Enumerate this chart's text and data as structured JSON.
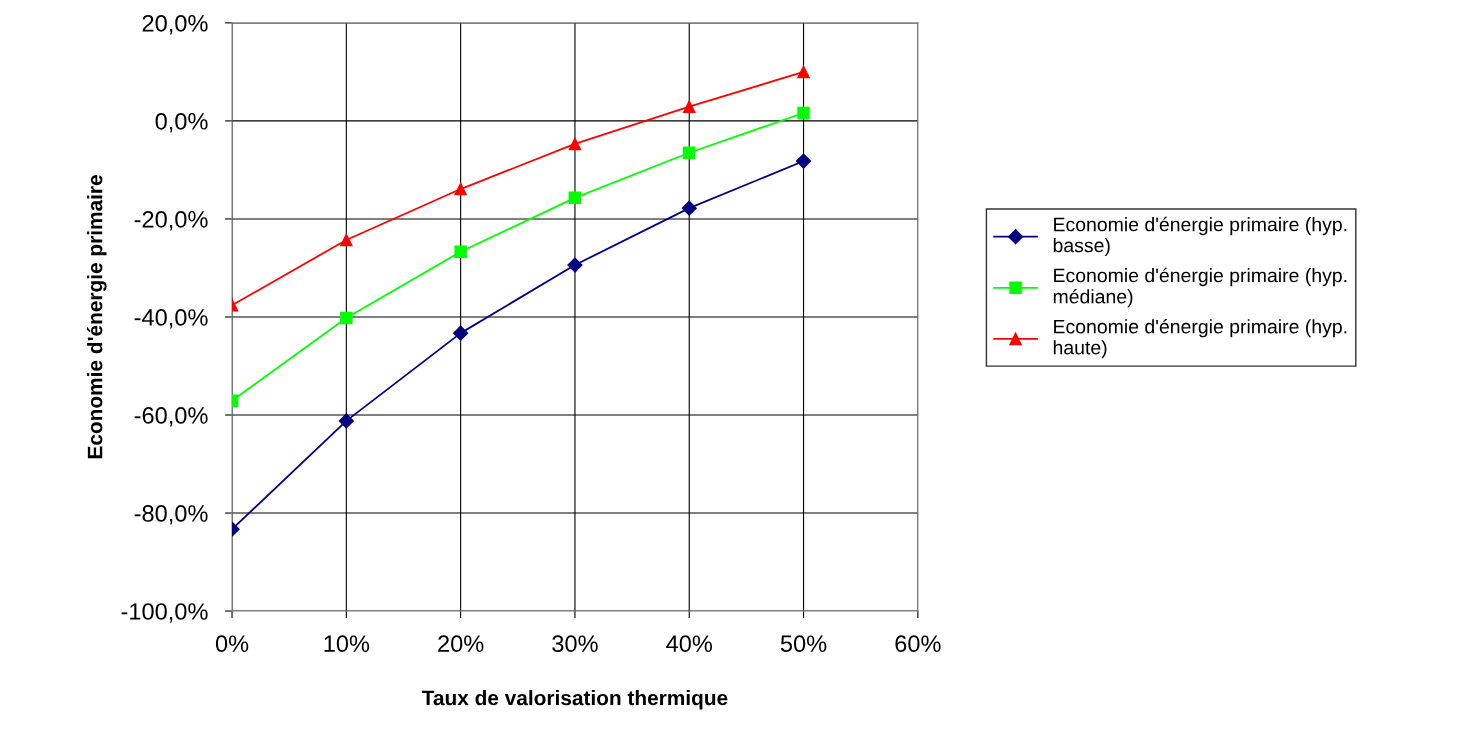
{
  "chart_data": {
    "type": "line",
    "xlabel": "Taux de valorisation thermique",
    "ylabel": "Economie d'énergie primaire",
    "x": [
      0,
      10,
      20,
      30,
      40,
      50
    ],
    "series": [
      {
        "name": "Economie d'énergie primaire (hyp. basse)",
        "color": "#000080",
        "marker": "diamond",
        "values": [
          -83.3,
          -61.2,
          -43.3,
          -29.4,
          -17.8,
          -8.2
        ]
      },
      {
        "name": "Economie d'énergie primaire (hyp. médiane)",
        "color": "#00ff00",
        "marker": "square",
        "values": [
          -57.1,
          -40.2,
          -26.7,
          -15.7,
          -6.5,
          1.6
        ]
      },
      {
        "name": "Economie d'énergie primaire (hyp. haute)",
        "color": "#ff0000",
        "marker": "triangle",
        "values": [
          -37.6,
          -24.3,
          -13.9,
          -4.7,
          2.9,
          10.0
        ]
      }
    ],
    "xlim": [
      0,
      60
    ],
    "xticks": [
      {
        "value": 0,
        "label": "0%"
      },
      {
        "value": 10,
        "label": "10%"
      },
      {
        "value": 20,
        "label": "20%"
      },
      {
        "value": 30,
        "label": "30%"
      },
      {
        "value": 40,
        "label": "40%"
      },
      {
        "value": 50,
        "label": "50%"
      },
      {
        "value": 60,
        "label": "60%"
      }
    ],
    "ylim": [
      -100,
      20
    ],
    "yticks": [
      {
        "value": -100,
        "label": "-100,0%"
      },
      {
        "value": -80,
        "label": "-80,0%"
      },
      {
        "value": -60,
        "label": "-60,0%"
      },
      {
        "value": -40,
        "label": "-40,0%"
      },
      {
        "value": -20,
        "label": "-20,0%"
      },
      {
        "value": 0,
        "label": "0,0%"
      },
      {
        "value": 20,
        "label": "20,0%"
      }
    ],
    "grid": true,
    "legend": "right",
    "line_style": "solid"
  }
}
